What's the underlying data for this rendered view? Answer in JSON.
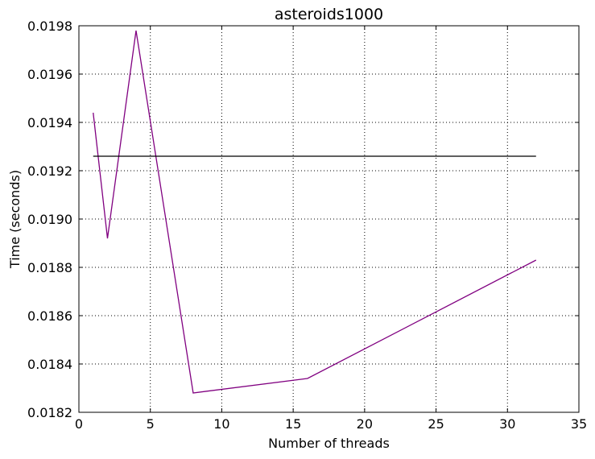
{
  "chart_data": {
    "type": "line",
    "title": "asteroids1000",
    "xlabel": "Number of threads",
    "ylabel": "Time (seconds)",
    "xlim": [
      0,
      35
    ],
    "ylim": [
      0.0182,
      0.0198
    ],
    "x_ticks": [
      "0",
      "5",
      "10",
      "15",
      "20",
      "25",
      "30",
      "35"
    ],
    "x_tick_values": [
      0,
      5,
      10,
      15,
      20,
      25,
      30,
      35
    ],
    "y_ticks": [
      "0.0182",
      "0.0184",
      "0.0186",
      "0.0188",
      "0.0190",
      "0.0192",
      "0.0194",
      "0.0196",
      "0.0198"
    ],
    "y_tick_values": [
      0.0182,
      0.0184,
      0.0186,
      0.0188,
      0.019,
      0.0192,
      0.0194,
      0.0196,
      0.0198
    ],
    "grid": true,
    "legend": "none",
    "series": [
      {
        "color": "#800080",
        "x": [
          1,
          2,
          4,
          8,
          16,
          32
        ],
        "y": [
          0.01944,
          0.01892,
          0.01978,
          0.01828,
          0.01834,
          0.01883
        ]
      },
      {
        "color": "#000000",
        "x": [
          1,
          32
        ],
        "y": [
          0.01926,
          0.01926
        ]
      }
    ]
  }
}
